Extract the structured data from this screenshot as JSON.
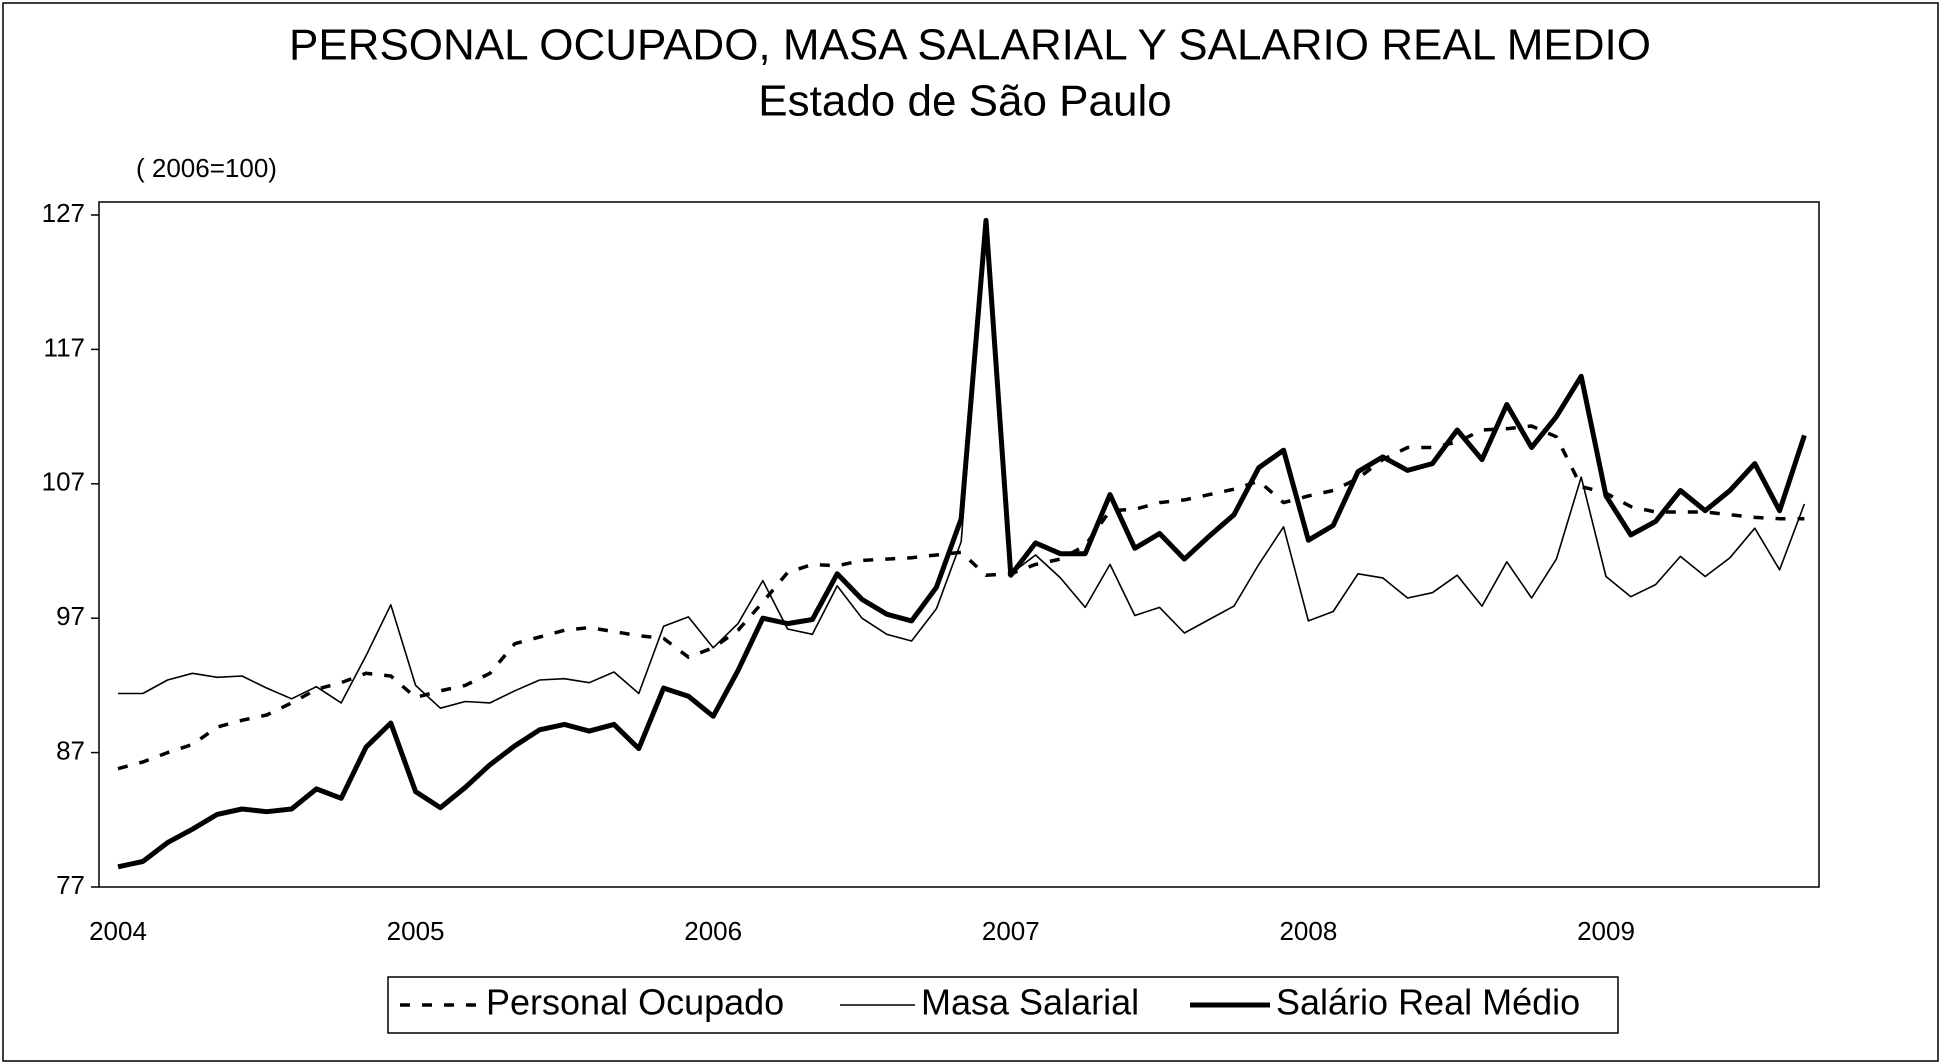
{
  "chart_data": {
    "type": "line",
    "title": "PERSONAL OCUPADO, MASA SALARIAL Y SALARIO REAL MEDIO",
    "subtitle": "Estado de São Paulo",
    "y_unit": "( 2006=100)",
    "categories": [
      "2004",
      null,
      null,
      null,
      null,
      null,
      null,
      null,
      null,
      null,
      null,
      null,
      "2005",
      null,
      null,
      null,
      null,
      null,
      null,
      null,
      null,
      null,
      null,
      null,
      "2006",
      null,
      null,
      null,
      null,
      null,
      null,
      null,
      null,
      null,
      null,
      null,
      "2007",
      null,
      null,
      null,
      null,
      null,
      null,
      null,
      null,
      null,
      null,
      null,
      "2008",
      null,
      null,
      null,
      null,
      null,
      null,
      null,
      null,
      null,
      null,
      null,
      "2009",
      null,
      null,
      null,
      null,
      null,
      null,
      null,
      null
    ],
    "series": [
      {
        "name": "Personal Ocupado",
        "color": "#000000",
        "line_style": "dashed",
        "values": [
          85.8,
          86.3,
          87.0,
          87.6,
          88.9,
          89.4,
          89.8,
          90.7,
          91.7,
          92.2,
          92.9,
          92.7,
          91.1,
          91.6,
          92.0,
          92.9,
          95.1,
          95.6,
          96.1,
          96.3,
          96.0,
          95.7,
          95.5,
          94.1,
          94.8,
          96.1,
          98.2,
          100.4,
          101.0,
          100.9,
          101.3,
          101.4,
          101.5,
          101.7,
          101.9,
          100.2,
          100.3,
          101.0,
          101.4,
          102.4,
          105.0,
          105.1,
          105.6,
          105.8,
          106.2,
          106.6,
          107.2,
          105.6,
          106.1,
          106.5,
          107.4,
          108.8,
          109.7,
          109.7,
          110.1,
          111.0,
          111.1,
          111.3,
          110.5,
          106.8,
          106.3,
          105.3,
          104.9,
          104.9,
          104.9,
          104.7,
          104.5,
          104.4,
          104.4
        ]
      },
      {
        "name": "Masa Salarial",
        "color": "#000000",
        "line_style": "thin",
        "values": [
          91.4,
          91.4,
          92.4,
          92.9,
          92.6,
          92.7,
          91.8,
          91.0,
          91.9,
          90.7,
          94.2,
          98.0,
          92.0,
          90.3,
          90.8,
          90.7,
          91.6,
          92.4,
          92.5,
          92.2,
          93.0,
          91.4,
          96.4,
          97.1,
          94.8,
          96.6,
          99.8,
          96.2,
          95.8,
          99.4,
          97.0,
          95.8,
          95.3,
          97.7,
          102.7,
          126.6,
          100.3,
          101.7,
          100.0,
          97.8,
          101.0,
          97.2,
          97.8,
          95.9,
          96.9,
          97.9,
          101.0,
          103.8,
          96.8,
          97.5,
          100.3,
          100.0,
          98.5,
          98.9,
          100.2,
          97.9,
          101.2,
          98.5,
          101.4,
          107.5,
          100.1,
          98.6,
          99.5,
          101.6,
          100.1,
          101.5,
          103.7,
          100.6,
          105.5
        ]
      },
      {
        "name": "Salário Real Médio",
        "color": "#000000",
        "line_style": "thick",
        "values": [
          78.5,
          78.9,
          80.3,
          81.3,
          82.4,
          82.8,
          82.6,
          82.8,
          84.3,
          83.6,
          87.4,
          89.2,
          84.1,
          82.9,
          84.4,
          86.1,
          87.5,
          88.7,
          89.1,
          88.6,
          89.1,
          87.3,
          91.8,
          91.2,
          89.7,
          93.1,
          97.0,
          96.6,
          96.9,
          100.3,
          98.4,
          97.3,
          96.8,
          99.3,
          104.4,
          126.6,
          100.2,
          102.6,
          101.8,
          101.8,
          106.2,
          102.2,
          103.3,
          101.4,
          103.1,
          104.7,
          108.2,
          109.5,
          102.8,
          103.9,
          107.9,
          109.0,
          108.0,
          108.5,
          111.0,
          108.8,
          112.9,
          109.7,
          112.0,
          115.0,
          106.1,
          103.2,
          104.2,
          106.5,
          105.0,
          106.5,
          108.5,
          105.0,
          110.6
        ]
      }
    ],
    "ylim": [
      77,
      127
    ],
    "yticks": [
      77,
      87,
      97,
      107,
      117,
      127
    ],
    "grid": false
  }
}
